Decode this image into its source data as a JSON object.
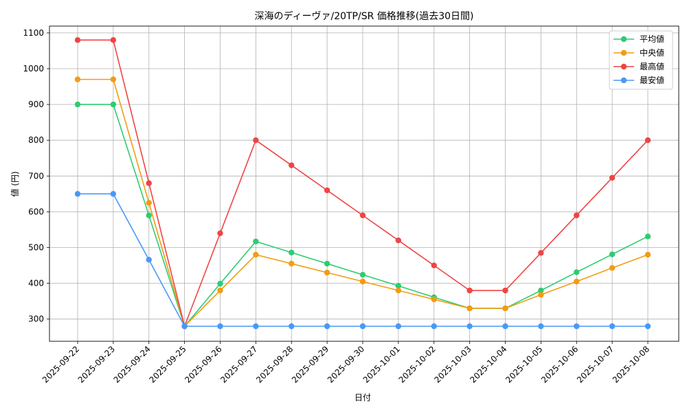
{
  "chart_data": {
    "type": "line",
    "title": "深海のディーヴァ/20TP/SR 価格推移(過去30日間)",
    "xlabel": "日付",
    "ylabel": "値 (円)",
    "categories": [
      "2025-09-22",
      "2025-09-23",
      "2025-09-24",
      "2025-09-25",
      "2025-09-26",
      "2025-09-27",
      "2025-09-28",
      "2025-09-29",
      "2025-09-30",
      "2025-10-01",
      "2025-10-02",
      "2025-10-03",
      "2025-10-04",
      "2025-10-05",
      "2025-10-06",
      "2025-10-07",
      "2025-10-08"
    ],
    "ylim": [
      238,
      1119
    ],
    "yticks": [
      300,
      400,
      500,
      600,
      700,
      800,
      900,
      1000,
      1100
    ],
    "ytick_labels": [
      "300",
      "400",
      "500",
      "600",
      "700",
      "800",
      "900",
      "1000",
      "1100"
    ],
    "grid": true,
    "legend_position": "top-right",
    "series": [
      {
        "name": "平均値",
        "color": "#2ecc71",
        "values": [
          900,
          900,
          590,
          280,
          399,
          517,
          486,
          455,
          424,
          393,
          361,
          330,
          330,
          380,
          431,
          481,
          531
        ]
      },
      {
        "name": "中央値",
        "color": "#f39c12",
        "values": [
          970,
          970,
          625,
          280,
          380,
          480,
          455,
          430,
          405,
          380,
          355,
          330,
          330,
          368,
          405,
          443,
          480
        ]
      },
      {
        "name": "最高値",
        "color": "#ef4444",
        "values": [
          1080,
          1080,
          680,
          280,
          540,
          800,
          730,
          660,
          590,
          520,
          450,
          380,
          380,
          485,
          590,
          695,
          800
        ]
      },
      {
        "name": "最安値",
        "color": "#4a98f7",
        "values": [
          650,
          650,
          466,
          280,
          280,
          280,
          280,
          280,
          280,
          280,
          280,
          280,
          280,
          280,
          280,
          280,
          280
        ]
      }
    ]
  }
}
